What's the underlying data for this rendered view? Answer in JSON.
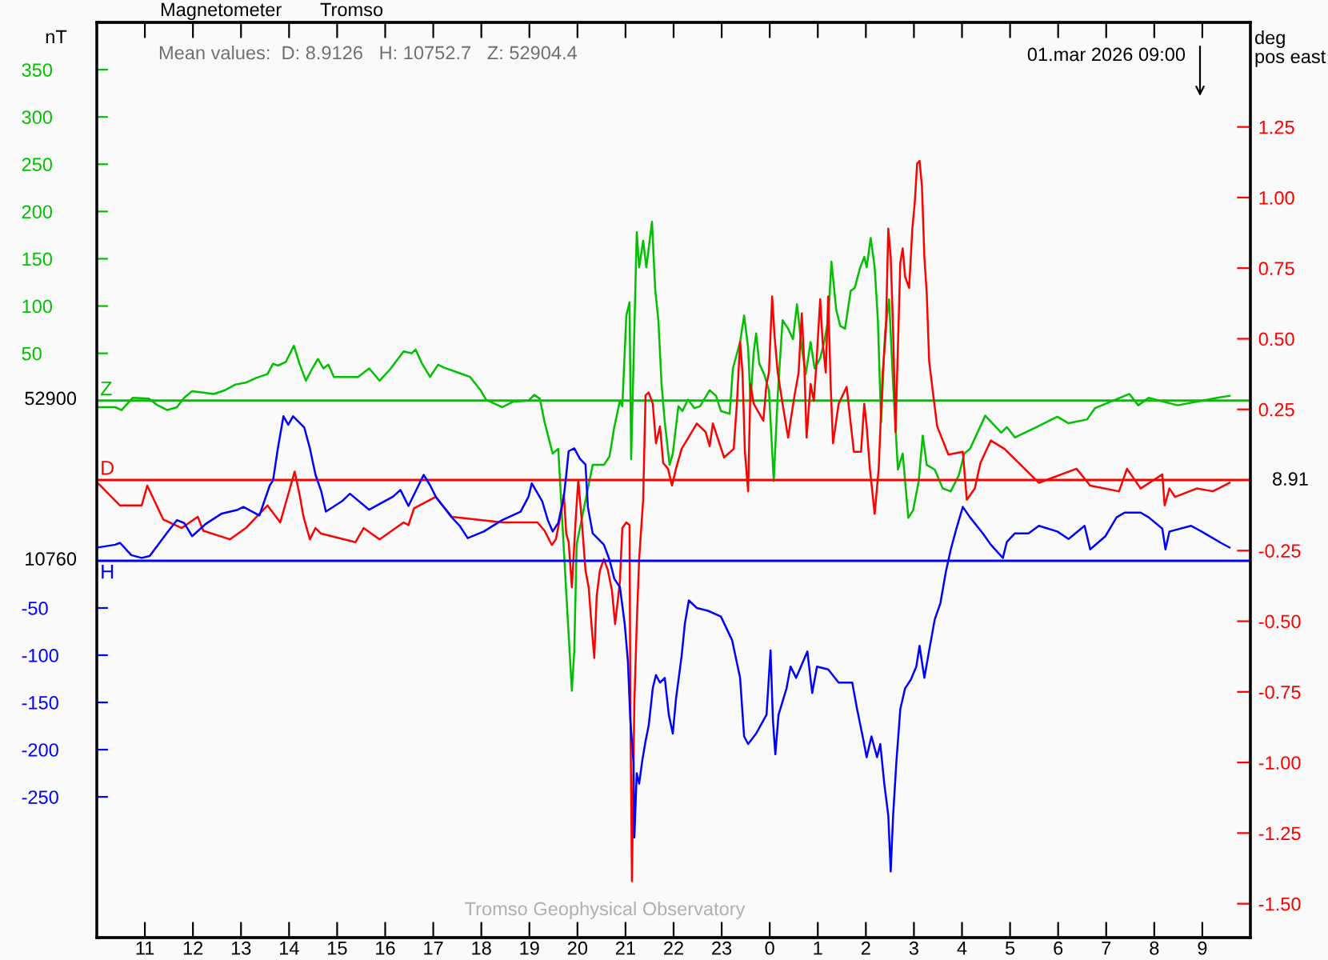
{
  "chart_data": {
    "type": "line",
    "title": "Magnetometer",
    "subtitle": "Tromso",
    "ylabel": "nT",
    "y2label": "deg\npos east",
    "annotations": [
      "Mean values:  D: 8.9126   H: 10752.7   Z: 52904.4",
      "01.mar 2026 09:00",
      "52900",
      "8.91",
      "10760",
      "Tromso Geophysical Observatory"
    ],
    "xlim": [
      "2026-02-28T10:00",
      "2026-03-01T10:00"
    ],
    "xticks": [
      {
        "value": "2026-02-28T11:00",
        "label": "11"
      },
      {
        "value": "2026-02-28T12:00",
        "label": "12"
      },
      {
        "value": "2026-02-28T13:00",
        "label": "13"
      },
      {
        "value": "2026-02-28T14:00",
        "label": "14"
      },
      {
        "value": "2026-02-28T15:00",
        "label": "15"
      },
      {
        "value": "2026-02-28T16:00",
        "label": "16"
      },
      {
        "value": "2026-02-28T17:00",
        "label": "17"
      },
      {
        "value": "2026-02-28T18:00",
        "label": "18"
      },
      {
        "value": "2026-02-28T19:00",
        "label": "19"
      },
      {
        "value": "2026-02-28T20:00",
        "label": "20"
      },
      {
        "value": "2026-02-28T21:00",
        "label": "21"
      },
      {
        "value": "2026-02-28T22:00",
        "label": "22"
      },
      {
        "value": "2026-02-28T23:00",
        "label": "23"
      },
      {
        "value": "2026-03-01T00:00",
        "label": "0"
      },
      {
        "value": "2026-03-01T01:00",
        "label": "1"
      },
      {
        "value": "2026-03-01T02:00",
        "label": "2"
      },
      {
        "value": "2026-03-01T03:00",
        "label": "3"
      },
      {
        "value": "2026-03-01T04:00",
        "label": "4"
      },
      {
        "value": "2026-03-01T05:00",
        "label": "5"
      },
      {
        "value": "2026-03-01T06:00",
        "label": "6"
      },
      {
        "value": "2026-03-01T07:00",
        "label": "7"
      },
      {
        "value": "2026-03-01T08:00",
        "label": "8"
      },
      {
        "value": "2026-03-01T09:00",
        "label": "9"
      }
    ],
    "ylim": [
      -568,
      400
    ],
    "yticks": [
      50,
      100,
      150,
      200,
      250,
      300,
      350
    ],
    "y2lim": [
      -1.62,
      1.62
    ],
    "y2ticks": [
      1.25,
      {
        "value": 1,
        "label": "1.00"
      },
      0.75,
      {
        "value": 0.5,
        "label": "0.50"
      },
      0.25,
      -0.25,
      {
        "value": -0.5,
        "label": "-0.50"
      },
      -0.75,
      {
        "value": -1,
        "label": "-1.00"
      },
      -1.25,
      {
        "value": -1.5,
        "label": "-1.50"
      }
    ],
    "y3lim": [
      -399,
      570
    ],
    "y3ticks": [
      -50,
      -100,
      -150,
      -200,
      -250
    ],
    "ref_lines": [
      {
        "axis": "y",
        "value": 0,
        "color": "#00c000"
      },
      {
        "axis": "y2",
        "value": 0,
        "color": "#ff0000"
      },
      {
        "axis": "y3",
        "value": 0,
        "color": "#0000ff"
      }
    ],
    "series": [
      {
        "name": "Z",
        "color": "#00c000",
        "axis": "y",
        "x": [
          "2026-02-28T10:01",
          "2026-02-28T10:23",
          "2026-02-28T10:31",
          "2026-02-28T10:45",
          "2026-02-28T11:05",
          "2026-02-28T11:16",
          "2026-02-28T11:28",
          "2026-02-28T11:40",
          "2026-02-28T11:49",
          "2026-02-28T11:59",
          "2026-02-28T12:26",
          "2026-02-28T12:40",
          "2026-02-28T12:53",
          "2026-02-28T13:06",
          "2026-02-28T13:19",
          "2026-02-28T13:33",
          "2026-02-28T13:40",
          "2026-02-28T13:46",
          "2026-02-28T13:56",
          "2026-02-28T14:06",
          "2026-02-28T14:13",
          "2026-02-28T14:21",
          "2026-02-28T14:29",
          "2026-02-28T14:36",
          "2026-02-28T14:43",
          "2026-02-28T14:49",
          "2026-02-28T14:56",
          "2026-02-28T15:26",
          "2026-02-28T15:40",
          "2026-02-28T15:53",
          "2026-02-28T16:06",
          "2026-02-28T16:23",
          "2026-02-28T16:33",
          "2026-02-28T16:38",
          "2026-02-28T16:46",
          "2026-02-28T16:56",
          "2026-02-28T17:06",
          "2026-02-28T17:13",
          "2026-02-28T17:33",
          "2026-02-28T17:46",
          "2026-02-28T17:59",
          "2026-02-28T18:06",
          "2026-02-28T18:16",
          "2026-02-28T18:26",
          "2026-02-28T18:40",
          "2026-02-28T18:59",
          "2026-02-28T19:06",
          "2026-02-28T19:13",
          "2026-02-28T19:19",
          "2026-02-28T19:29",
          "2026-02-28T19:36",
          "2026-02-28T19:46",
          "2026-02-28T19:53",
          "2026-02-28T19:56",
          "2026-02-28T19:59",
          "2026-02-28T20:19",
          "2026-02-28T20:33",
          "2026-02-28T20:40",
          "2026-02-28T20:46",
          "2026-02-28T20:53",
          "2026-02-28T20:56",
          "2026-02-28T21:01",
          "2026-02-28T21:05",
          "2026-02-28T21:07",
          "2026-02-28T21:14",
          "2026-02-28T21:17",
          "2026-02-28T21:22",
          "2026-02-28T21:26",
          "2026-02-28T21:33",
          "2026-02-28T21:37",
          "2026-02-28T21:41",
          "2026-02-28T21:45",
          "2026-02-28T21:49",
          "2026-02-28T21:55",
          "2026-02-28T21:59",
          "2026-02-28T22:06",
          "2026-02-28T22:11",
          "2026-02-28T22:18",
          "2026-02-28T22:26",
          "2026-02-28T22:33",
          "2026-02-28T22:45",
          "2026-02-28T22:53",
          "2026-02-28T22:59",
          "2026-02-28T23:10",
          "2026-02-28T23:14",
          "2026-02-28T23:23",
          "2026-02-28T23:28",
          "2026-02-28T23:33",
          "2026-02-28T23:36",
          "2026-02-28T23:40",
          "2026-02-28T23:43",
          "2026-02-28T23:47",
          "2026-02-28T23:53",
          "2026-02-28T23:59",
          "2026-03-01T00:05",
          "2026-03-01T00:10",
          "2026-03-01T00:16",
          "2026-03-01T00:23",
          "2026-03-01T00:29",
          "2026-03-01T00:34",
          "2026-03-01T00:40",
          "2026-03-01T00:45",
          "2026-03-01T00:51",
          "2026-03-01T00:56",
          "2026-03-01T01:03",
          "2026-03-01T01:08",
          "2026-03-01T01:13",
          "2026-03-01T01:17",
          "2026-03-01T01:23",
          "2026-03-01T01:28",
          "2026-03-01T01:34",
          "2026-03-01T01:41",
          "2026-03-01T01:46",
          "2026-03-01T01:53",
          "2026-03-01T01:58",
          "2026-03-01T02:01",
          "2026-03-01T02:06",
          "2026-03-01T02:11",
          "2026-03-01T02:15",
          "2026-03-01T02:19",
          "2026-03-01T02:24",
          "2026-03-01T02:29",
          "2026-03-01T02:34",
          "2026-03-01T02:40",
          "2026-03-01T02:46",
          "2026-03-01T02:53",
          "2026-03-01T02:59",
          "2026-03-01T03:06",
          "2026-03-01T03:11",
          "2026-03-01T03:16",
          "2026-03-01T03:26",
          "2026-03-01T03:36",
          "2026-03-01T03:46",
          "2026-03-01T03:56",
          "2026-03-01T04:03",
          "2026-03-01T04:10",
          "2026-03-01T04:29",
          "2026-03-01T04:49",
          "2026-03-01T04:56",
          "2026-03-01T05:06",
          "2026-03-01T05:33",
          "2026-03-01T05:59",
          "2026-03-01T06:13",
          "2026-03-01T06:36",
          "2026-03-01T06:46",
          "2026-03-01T07:29",
          "2026-03-01T07:40",
          "2026-03-01T07:53",
          "2026-03-01T08:29",
          "2026-03-01T09:19",
          "2026-03-01T09:34"
        ],
        "values": [
          -7,
          -7,
          -10,
          3,
          2,
          -5,
          -10,
          -7,
          3,
          10,
          7,
          11,
          17,
          19,
          24,
          28,
          39,
          37,
          41,
          58,
          39,
          21,
          34,
          44,
          34,
          38,
          25,
          25,
          34,
          21,
          33,
          52,
          50,
          54,
          39,
          25,
          38,
          35,
          29,
          25,
          11,
          1,
          -3,
          -7,
          -1,
          0,
          6,
          2,
          -23,
          -56,
          -51,
          -203,
          -307,
          -265,
          -152,
          -68,
          -68,
          -59,
          -28,
          0,
          -6,
          90,
          104,
          -62,
          178,
          141,
          169,
          141,
          189,
          118,
          85,
          17,
          -23,
          -68,
          -56,
          -6,
          -11,
          1,
          -8,
          -6,
          11,
          5,
          -11,
          -14,
          34,
          62,
          90,
          56,
          0,
          51,
          71,
          39,
          28,
          11,
          -85,
          6,
          85,
          76,
          65,
          102,
          56,
          28,
          62,
          34,
          45,
          62,
          85,
          147,
          96,
          79,
          76,
          116,
          119,
          141,
          152,
          141,
          172,
          141,
          85,
          -23,
          73,
          107,
          17,
          -73,
          -56,
          -124,
          -116,
          -85,
          -37,
          -68,
          -73,
          -93,
          -96,
          -79,
          -56,
          -51,
          -16,
          -34,
          -28,
          -39,
          -28,
          -17,
          -24,
          -20,
          -8,
          7,
          -5,
          3,
          -5,
          3,
          5
        ]
      },
      {
        "name": "D",
        "color": "#ff0000",
        "axis": "y2",
        "x": [
          "2026-02-28T10:01",
          "2026-02-28T10:29",
          "2026-02-28T10:56",
          "2026-02-28T11:03",
          "2026-02-28T11:23",
          "2026-02-28T11:46",
          "2026-02-28T12:06",
          "2026-02-28T12:13",
          "2026-02-28T12:46",
          "2026-02-28T13:06",
          "2026-02-28T13:33",
          "2026-02-28T13:49",
          "2026-02-28T13:56",
          "2026-02-28T14:07",
          "2026-02-28T14:13",
          "2026-02-28T14:18",
          "2026-02-28T14:26",
          "2026-02-28T14:33",
          "2026-02-28T14:40",
          "2026-02-28T15:23",
          "2026-02-28T15:33",
          "2026-02-28T15:53",
          "2026-02-28T16:23",
          "2026-02-28T16:29",
          "2026-02-28T16:36",
          "2026-02-28T17:03",
          "2026-02-28T17:23",
          "2026-02-28T18:26",
          "2026-02-28T19:10",
          "2026-02-28T19:19",
          "2026-02-28T19:28",
          "2026-02-28T19:33",
          "2026-02-28T19:40",
          "2026-02-28T19:43",
          "2026-02-28T19:46",
          "2026-02-28T19:49",
          "2026-02-28T19:53",
          "2026-02-28T19:58",
          "2026-02-28T20:01",
          "2026-02-28T20:05",
          "2026-02-28T20:10",
          "2026-02-28T20:14",
          "2026-02-28T20:18",
          "2026-02-28T20:21",
          "2026-02-28T20:24",
          "2026-02-28T20:28",
          "2026-02-28T20:33",
          "2026-02-28T20:38",
          "2026-02-28T20:43",
          "2026-02-28T20:47",
          "2026-02-28T20:53",
          "2026-02-28T20:56",
          "2026-02-28T21:01",
          "2026-02-28T21:05",
          "2026-02-28T21:06",
          "2026-02-28T21:08",
          "2026-02-28T21:11",
          "2026-02-28T21:14",
          "2026-02-28T21:17",
          "2026-02-28T21:22",
          "2026-02-28T21:25",
          "2026-02-28T21:29",
          "2026-02-28T21:34",
          "2026-02-28T21:38",
          "2026-02-28T21:43",
          "2026-02-28T21:47",
          "2026-02-28T21:53",
          "2026-02-28T21:58",
          "2026-02-28T22:03",
          "2026-02-28T22:10",
          "2026-02-28T22:29",
          "2026-02-28T22:40",
          "2026-02-28T22:45",
          "2026-02-28T22:49",
          "2026-02-28T23:03",
          "2026-02-28T23:15",
          "2026-02-28T23:19",
          "2026-02-28T23:23",
          "2026-02-28T23:26",
          "2026-02-28T23:29",
          "2026-02-28T23:33",
          "2026-02-28T23:36",
          "2026-02-28T23:40",
          "2026-02-28T23:52",
          "2026-02-28T23:56",
          "2026-02-28T23:59",
          "2026-03-01T00:03",
          "2026-03-01T00:06",
          "2026-03-01T00:10",
          "2026-03-01T00:16",
          "2026-03-01T00:23",
          "2026-03-01T00:26",
          "2026-03-01T00:31",
          "2026-03-01T00:36",
          "2026-03-01T00:40",
          "2026-03-01T00:43",
          "2026-03-01T00:46",
          "2026-03-01T00:51",
          "2026-03-01T00:55",
          "2026-03-01T00:58",
          "2026-03-01T01:03",
          "2026-03-01T01:06",
          "2026-03-01T01:10",
          "2026-03-01T01:13",
          "2026-03-01T01:16",
          "2026-03-01T01:19",
          "2026-03-01T01:26",
          "2026-03-01T01:36",
          "2026-03-01T01:45",
          "2026-03-01T01:54",
          "2026-03-01T01:58",
          "2026-03-01T02:01",
          "2026-03-01T02:05",
          "2026-03-01T02:11",
          "2026-03-01T02:16",
          "2026-03-01T02:21",
          "2026-03-01T02:25",
          "2026-03-01T02:28",
          "2026-03-01T02:31",
          "2026-03-01T02:34",
          "2026-03-01T02:37",
          "2026-03-01T02:40",
          "2026-03-01T02:43",
          "2026-03-01T02:46",
          "2026-03-01T02:49",
          "2026-03-01T02:54",
          "2026-03-01T02:58",
          "2026-03-01T03:01",
          "2026-03-01T03:04",
          "2026-03-01T03:07",
          "2026-03-01T03:10",
          "2026-03-01T03:13",
          "2026-03-01T03:16",
          "2026-03-01T03:19",
          "2026-03-01T03:25",
          "2026-03-01T03:29",
          "2026-03-01T03:43",
          "2026-03-01T04:01",
          "2026-03-01T04:06",
          "2026-03-01T04:16",
          "2026-03-01T04:23",
          "2026-03-01T04:36",
          "2026-03-01T04:53",
          "2026-03-01T05:36",
          "2026-03-01T06:23",
          "2026-03-01T06:40",
          "2026-03-01T07:16",
          "2026-03-01T07:26",
          "2026-03-01T07:43",
          "2026-03-01T08:10",
          "2026-03-01T08:13",
          "2026-03-01T08:19",
          "2026-03-01T08:26",
          "2026-03-01T08:53",
          "2026-03-01T09:13",
          "2026-03-01T09:34"
        ],
        "values": [
          -0.01,
          -0.09,
          -0.09,
          -0.02,
          -0.14,
          -0.17,
          -0.13,
          -0.18,
          -0.21,
          -0.17,
          -0.09,
          -0.15,
          -0.08,
          0.03,
          -0.05,
          -0.13,
          -0.21,
          -0.17,
          -0.19,
          -0.22,
          -0.17,
          -0.21,
          -0.15,
          -0.16,
          -0.1,
          -0.06,
          -0.13,
          -0.15,
          -0.15,
          -0.18,
          -0.23,
          -0.21,
          -0.11,
          -0.05,
          -0.19,
          -0.22,
          -0.38,
          -0.13,
          0.0,
          -0.13,
          -0.32,
          -0.38,
          -0.53,
          -0.63,
          -0.41,
          -0.32,
          -0.28,
          -0.32,
          -0.39,
          -0.51,
          -0.36,
          -0.17,
          -0.15,
          -0.16,
          -0.79,
          -1.42,
          -0.79,
          -0.51,
          -0.28,
          -0.07,
          0.3,
          0.31,
          0.27,
          0.13,
          0.19,
          0.06,
          0.04,
          -0.02,
          0.04,
          0.11,
          0.2,
          0.17,
          0.12,
          0.2,
          0.08,
          0.11,
          0.27,
          0.49,
          0.38,
          0.1,
          -0.04,
          0.34,
          0.27,
          0.21,
          0.34,
          0.38,
          0.65,
          0.51,
          0.38,
          0.27,
          0.15,
          0.21,
          0.3,
          0.38,
          0.59,
          0.42,
          0.15,
          0.34,
          0.28,
          0.4,
          0.64,
          0.49,
          0.38,
          0.65,
          0.34,
          0.13,
          0.27,
          0.33,
          0.1,
          0.1,
          0.27,
          0.19,
          0.04,
          -0.12,
          0.04,
          0.38,
          0.53,
          0.89,
          0.79,
          0.53,
          0.17,
          0.47,
          0.77,
          0.82,
          0.72,
          0.68,
          0.89,
          0.98,
          1.12,
          1.13,
          1.04,
          0.79,
          0.66,
          0.42,
          0.28,
          0.19,
          0.09,
          0.1,
          -0.07,
          -0.03,
          0.06,
          0.14,
          0.11,
          -0.01,
          0.04,
          -0.02,
          -0.04,
          0.04,
          -0.03,
          0.02,
          -0.09,
          -0.03,
          -0.06,
          -0.03,
          -0.04,
          -0.01
        ]
      },
      {
        "name": "H",
        "color": "#0000ff",
        "axis": "y3",
        "x": [
          "2026-02-28T10:01",
          "2026-02-28T10:23",
          "2026-02-28T10:29",
          "2026-02-28T10:43",
          "2026-02-28T10:56",
          "2026-02-28T11:06",
          "2026-02-28T11:29",
          "2026-02-28T11:40",
          "2026-02-28T11:49",
          "2026-02-28T11:59",
          "2026-02-28T12:16",
          "2026-02-28T12:36",
          "2026-02-28T12:56",
          "2026-02-28T13:03",
          "2026-02-28T13:23",
          "2026-02-28T13:36",
          "2026-02-28T13:40",
          "2026-02-28T13:46",
          "2026-02-28T13:53",
          "2026-02-28T13:59",
          "2026-02-28T14:05",
          "2026-02-28T14:19",
          "2026-02-28T14:26",
          "2026-02-28T14:33",
          "2026-02-28T14:40",
          "2026-02-28T14:46",
          "2026-02-28T15:06",
          "2026-02-28T15:16",
          "2026-02-28T15:40",
          "2026-02-28T16:10",
          "2026-02-28T16:19",
          "2026-02-28T16:29",
          "2026-02-28T16:40",
          "2026-02-28T16:48",
          "2026-02-28T16:56",
          "2026-02-28T17:03",
          "2026-02-28T17:23",
          "2026-02-28T17:33",
          "2026-02-28T17:43",
          "2026-02-28T18:03",
          "2026-02-28T18:26",
          "2026-02-28T18:49",
          "2026-02-28T18:59",
          "2026-02-28T19:03",
          "2026-02-28T19:16",
          "2026-02-28T19:23",
          "2026-02-28T19:29",
          "2026-02-28T19:36",
          "2026-02-28T19:43",
          "2026-02-28T19:46",
          "2026-02-28T19:49",
          "2026-02-28T19:56",
          "2026-02-28T20:03",
          "2026-02-28T20:10",
          "2026-02-28T20:13",
          "2026-02-28T20:19",
          "2026-02-28T20:33",
          "2026-02-28T20:40",
          "2026-02-28T20:46",
          "2026-02-28T20:53",
          "2026-02-28T20:59",
          "2026-02-28T21:03",
          "2026-02-28T21:06",
          "2026-02-28T21:10",
          "2026-02-28T21:11",
          "2026-02-28T21:14",
          "2026-02-28T21:17",
          "2026-02-28T21:21",
          "2026-02-28T21:25",
          "2026-02-28T21:29",
          "2026-02-28T21:34",
          "2026-02-28T21:38",
          "2026-02-28T21:43",
          "2026-02-28T21:49",
          "2026-02-28T21:54",
          "2026-02-28T21:59",
          "2026-02-28T22:03",
          "2026-02-28T22:10",
          "2026-02-28T22:14",
          "2026-02-28T22:19",
          "2026-02-28T22:29",
          "2026-02-28T22:43",
          "2026-02-28T22:59",
          "2026-02-28T23:13",
          "2026-02-28T23:23",
          "2026-02-28T23:28",
          "2026-02-28T23:33",
          "2026-02-28T23:43",
          "2026-02-28T23:56",
          "2026-03-01T00:01",
          "2026-03-01T00:04",
          "2026-03-01T00:07",
          "2026-03-01T00:11",
          "2026-03-01T00:21",
          "2026-03-01T00:26",
          "2026-03-01T00:33",
          "2026-03-01T00:47",
          "2026-03-01T00:53",
          "2026-03-01T00:59",
          "2026-03-01T01:13",
          "2026-03-01T01:26",
          "2026-03-01T01:43",
          "2026-03-01T01:49",
          "2026-03-01T01:56",
          "2026-03-01T02:01",
          "2026-03-01T02:07",
          "2026-03-01T02:14",
          "2026-03-01T02:18",
          "2026-03-01T02:23",
          "2026-03-01T02:28",
          "2026-03-01T02:31",
          "2026-03-01T02:34",
          "2026-03-01T02:38",
          "2026-03-01T02:43",
          "2026-03-01T02:49",
          "2026-03-01T02:56",
          "2026-03-01T03:03",
          "2026-03-01T03:07",
          "2026-03-01T03:13",
          "2026-03-01T03:19",
          "2026-03-01T03:26",
          "2026-03-01T03:33",
          "2026-03-01T03:40",
          "2026-03-01T03:46",
          "2026-03-01T03:53",
          "2026-03-01T04:01",
          "2026-03-01T04:10",
          "2026-03-01T04:26",
          "2026-03-01T04:36",
          "2026-03-01T04:51",
          "2026-03-01T04:56",
          "2026-03-01T05:06",
          "2026-03-01T05:23",
          "2026-03-01T05:36",
          "2026-03-01T05:59",
          "2026-03-01T06:13",
          "2026-03-01T06:33",
          "2026-03-01T06:40",
          "2026-03-01T06:59",
          "2026-03-01T07:13",
          "2026-03-01T07:23",
          "2026-03-01T07:43",
          "2026-03-01T07:53",
          "2026-03-01T08:10",
          "2026-03-01T08:14",
          "2026-03-01T08:19",
          "2026-03-01T08:46",
          "2026-03-01T08:59",
          "2026-03-01T09:23",
          "2026-03-01T09:34"
        ],
        "values": [
          14,
          17,
          19,
          6,
          3,
          5,
          31,
          43,
          40,
          26,
          39,
          50,
          54,
          57,
          48,
          80,
          85,
          119,
          153,
          144,
          153,
          141,
          119,
          91,
          74,
          52,
          63,
          71,
          54,
          68,
          75,
          58,
          77,
          91,
          80,
          68,
          46,
          37,
          24,
          31,
          43,
          52,
          68,
          82,
          63,
          43,
          31,
          40,
          68,
          91,
          116,
          119,
          108,
          102,
          57,
          29,
          17,
          1,
          -19,
          -28,
          -67,
          -107,
          -169,
          -214,
          -293,
          -225,
          -236,
          -211,
          -191,
          -174,
          -135,
          -121,
          -129,
          -124,
          -163,
          -183,
          -146,
          -101,
          -67,
          -42,
          -50,
          -53,
          -59,
          -84,
          -124,
          -186,
          -194,
          -183,
          -163,
          -95,
          -169,
          -205,
          -163,
          -135,
          -112,
          -124,
          -96,
          -140,
          -112,
          -115,
          -129,
          -129,
          -157,
          -186,
          -208,
          -186,
          -208,
          -194,
          -236,
          -270,
          -329,
          -270,
          -214,
          -157,
          -135,
          -126,
          -112,
          -90,
          -124,
          -95,
          -62,
          -45,
          -11,
          12,
          34,
          57,
          46,
          29,
          17,
          3,
          20,
          29,
          29,
          37,
          31,
          23,
          37,
          12,
          26,
          46,
          51,
          51,
          46,
          34,
          12,
          31,
          37,
          31,
          19,
          14
        ]
      }
    ]
  }
}
